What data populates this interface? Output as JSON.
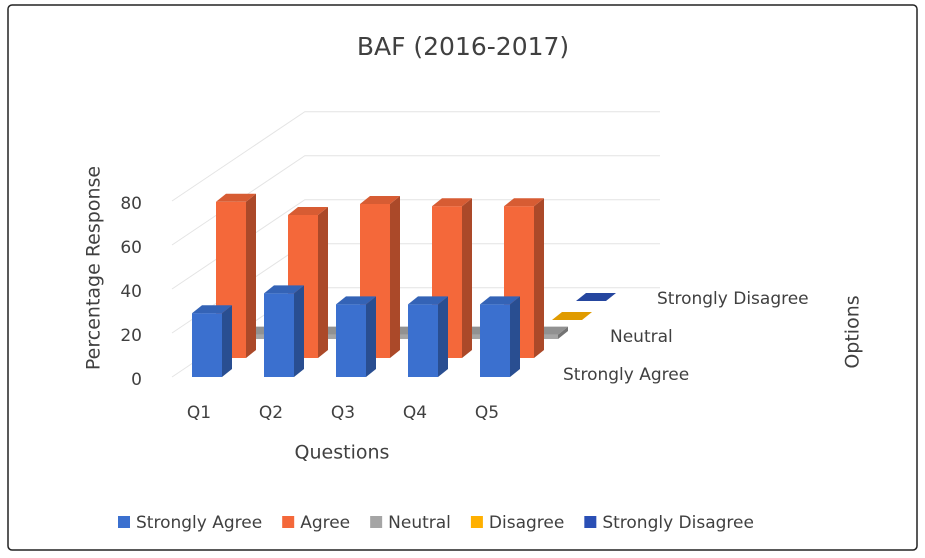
{
  "chart_data": {
    "type": "bar3d",
    "title": "BAF (2016-2017)",
    "y_label": "Percentage Response",
    "x_label": "Questions",
    "z_label": "Options",
    "categories": [
      "Q1",
      "Q2",
      "Q3",
      "Q4",
      "Q5"
    ],
    "series": [
      {
        "name": "Strongly Agree",
        "color": "#3b70cf",
        "values": [
          29,
          38,
          33,
          33,
          33
        ]
      },
      {
        "name": "Agree",
        "color": "#f4683a",
        "values": [
          71,
          65,
          70,
          69,
          69
        ]
      },
      {
        "name": "Neutral",
        "color": "#a5a5a5",
        "values": [
          2,
          2,
          2,
          2,
          2
        ]
      },
      {
        "name": "Disagree",
        "color": "#ffb000",
        "values": [
          0,
          0,
          0,
          0,
          0
        ]
      },
      {
        "name": "Strongly Disagree",
        "color": "#2a4fb5",
        "values": [
          0,
          0,
          0,
          0,
          0
        ]
      }
    ],
    "depth_series": [
      0,
      2,
      4
    ],
    "ylim": [
      0,
      100
    ],
    "yticks": [
      0,
      20,
      40,
      60,
      80
    ],
    "grid": true,
    "legend": "bottom"
  }
}
